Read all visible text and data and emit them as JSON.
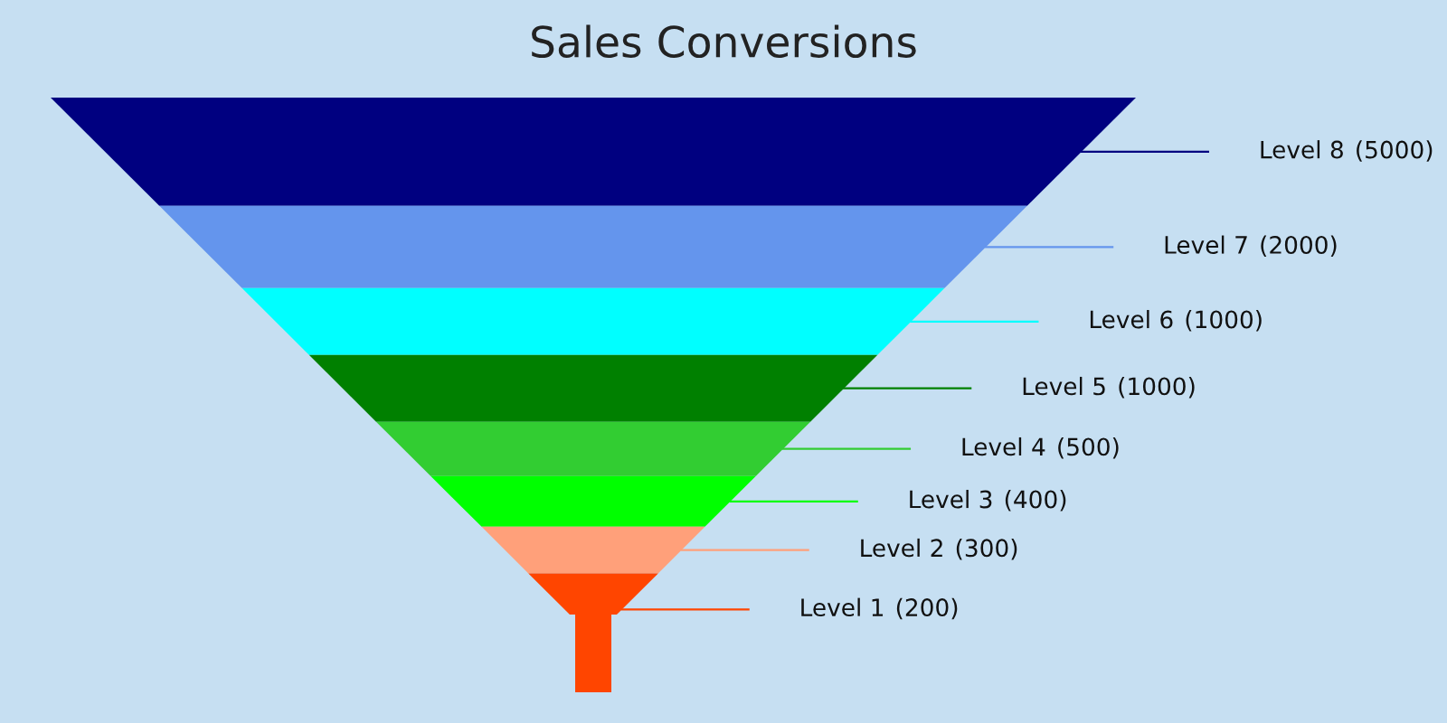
{
  "chart_data": {
    "type": "other",
    "title": "Sales Conversions",
    "categories": [
      "Level 8",
      "Level 7",
      "Level 6",
      "Level 5",
      "Level 4",
      "Level 3",
      "Level 2",
      "Level 1"
    ],
    "values": [
      5000,
      2000,
      1000,
      1000,
      500,
      400,
      300,
      200
    ],
    "colors": [
      "#000080",
      "#6495ed",
      "#00ffff",
      "#008000",
      "#32cd32",
      "#00ff00",
      "#ffa07a",
      "#ff4500"
    ],
    "value_labels": [
      "(5000)",
      "(2000)",
      "(1000)",
      "(1000)",
      "(500)",
      "(400)",
      "(300)",
      "(200)"
    ]
  }
}
